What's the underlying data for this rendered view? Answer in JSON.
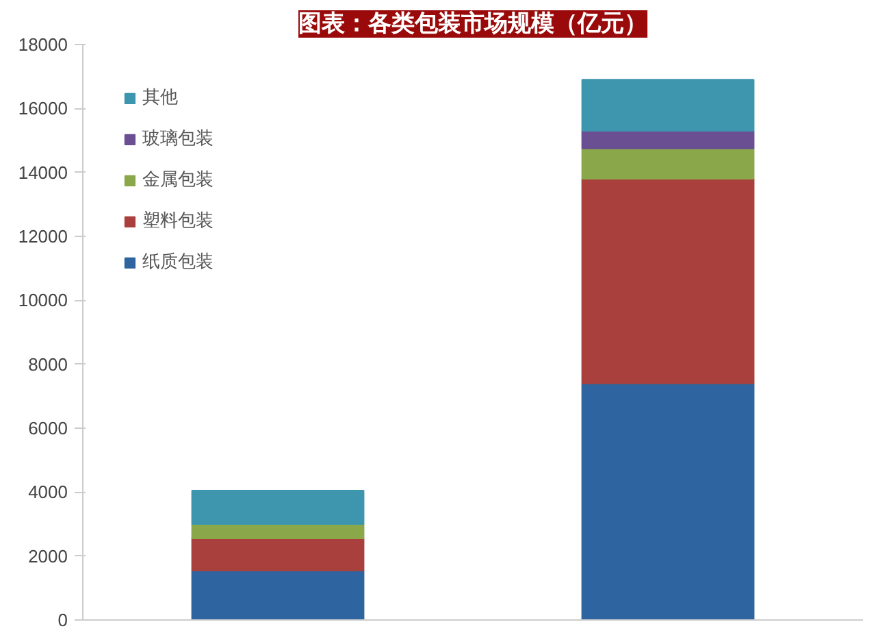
{
  "chart_data": {
    "type": "bar",
    "title": "图表：各类包装市场规模（亿元）",
    "categories": [
      null,
      null
    ],
    "stacked": true,
    "legend": "top left",
    "grid": false,
    "series": [
      {
        "name": "纸质包装",
        "color": "#2e64a0",
        "values": [
          1550,
          7400
        ]
      },
      {
        "name": "塑料包装",
        "color": "#a9403d",
        "values": [
          1000,
          6400
        ]
      },
      {
        "name": "金属包装",
        "color": "#8aa84a",
        "values": [
          450,
          950
        ]
      },
      {
        "name": "玻璃包装",
        "color": "#6a4f92",
        "values": [
          null,
          550
        ]
      },
      {
        "name": "其他",
        "color": "#3d96ad",
        "values": [
          1050,
          1600
        ]
      }
    ],
    "ylim": [
      0,
      18000
    ],
    "yticks": [
      0,
      2000,
      4000,
      6000,
      8000,
      10000,
      12000,
      14000,
      16000,
      18000
    ]
  }
}
